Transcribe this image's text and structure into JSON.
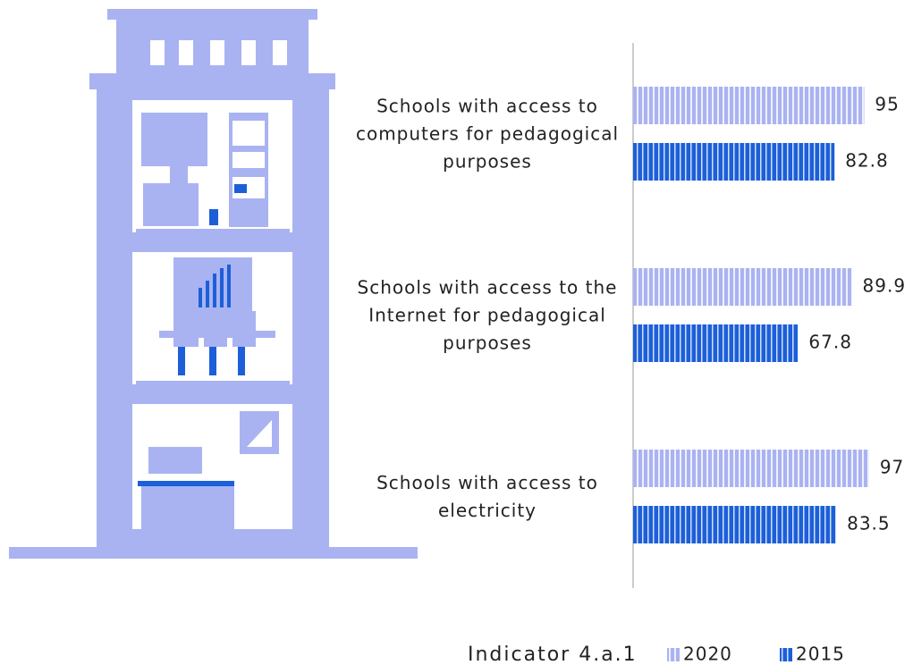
{
  "chart_data": {
    "type": "bar",
    "orientation": "horizontal",
    "categories": [
      "Schools with access to computers for pedagogical purposes",
      "Schools with access to the Internet for pedagogical purposes",
      "Schools with access to electricity"
    ],
    "series": [
      {
        "name": "2020",
        "color": "#aab3f1",
        "values": [
          95,
          89.9,
          97
        ]
      },
      {
        "name": "2015",
        "color": "#1c5fd8",
        "values": [
          82.8,
          67.8,
          83.5
        ]
      }
    ],
    "legend_title": "Indicator 4.a.1"
  }
}
